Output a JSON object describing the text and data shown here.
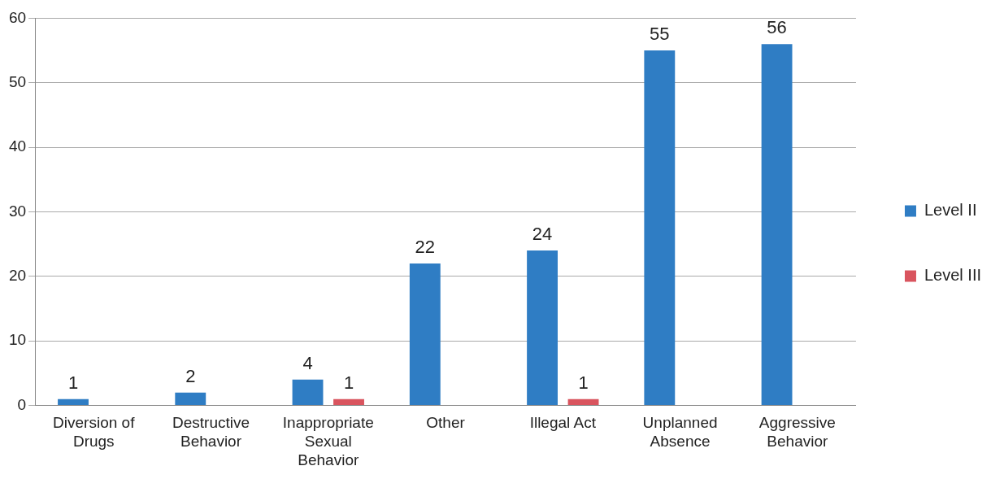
{
  "chart_data": {
    "type": "bar",
    "categories": [
      "Diversion of Drugs",
      "Destructive Behavior",
      "Inappropriate Sexual Behavior",
      "Other",
      "Illegal Act",
      "Unplanned Absence",
      "Aggressive Behavior"
    ],
    "series": [
      {
        "name": "Level II",
        "color": "#2f7dc4",
        "values": [
          1,
          2,
          4,
          22,
          24,
          55,
          56
        ]
      },
      {
        "name": "Level III",
        "color": "#d9545e",
        "values": [
          null,
          null,
          1,
          null,
          1,
          null,
          null
        ]
      }
    ],
    "ylim": [
      0,
      60
    ],
    "yticks": [
      0,
      10,
      20,
      30,
      40,
      50,
      60
    ],
    "grid": "y",
    "legend": "right",
    "data_labels": true
  }
}
